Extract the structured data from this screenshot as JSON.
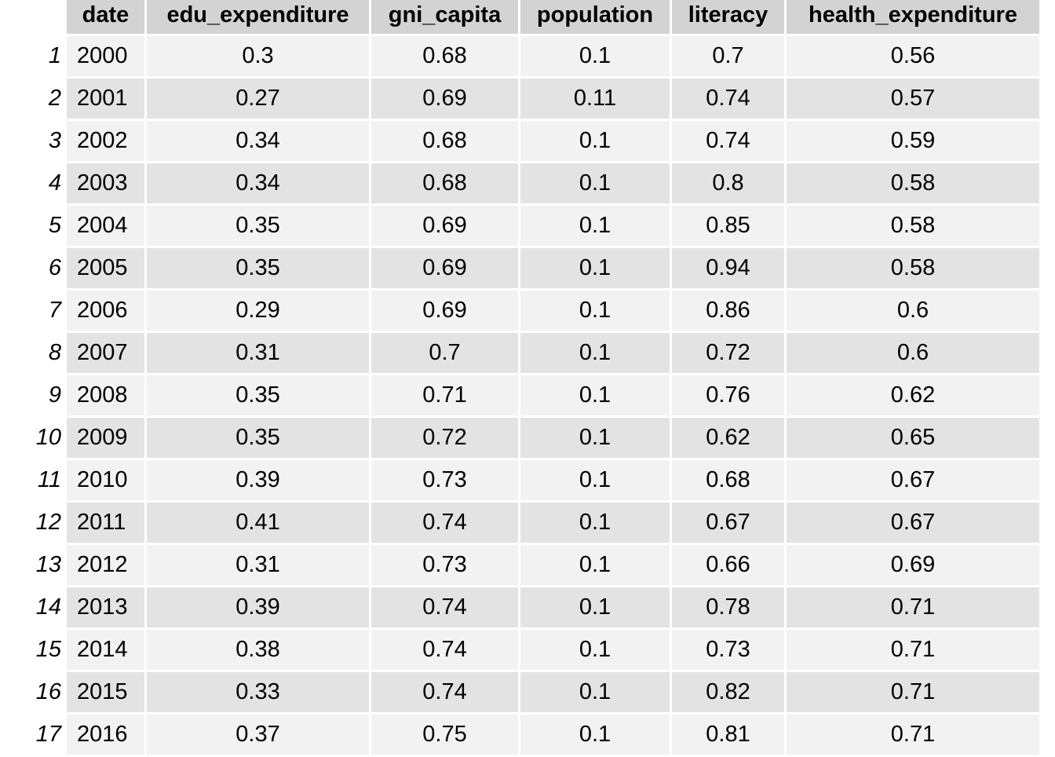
{
  "chart_data": {
    "type": "table",
    "columns": [
      "date",
      "edu_expenditure",
      "gni_capita",
      "population",
      "literacy",
      "health_expenditure"
    ],
    "row_names": [
      "1",
      "2",
      "3",
      "4",
      "5",
      "6",
      "7",
      "8",
      "9",
      "10",
      "11",
      "12",
      "13",
      "14",
      "15",
      "16",
      "17"
    ],
    "rows": [
      [
        "2000",
        "0.3",
        "0.68",
        "0.1",
        "0.7",
        "0.56"
      ],
      [
        "2001",
        "0.27",
        "0.69",
        "0.11",
        "0.74",
        "0.57"
      ],
      [
        "2002",
        "0.34",
        "0.68",
        "0.1",
        "0.74",
        "0.59"
      ],
      [
        "2003",
        "0.34",
        "0.68",
        "0.1",
        "0.8",
        "0.58"
      ],
      [
        "2004",
        "0.35",
        "0.69",
        "0.1",
        "0.85",
        "0.58"
      ],
      [
        "2005",
        "0.35",
        "0.69",
        "0.1",
        "0.94",
        "0.58"
      ],
      [
        "2006",
        "0.29",
        "0.69",
        "0.1",
        "0.86",
        "0.6"
      ],
      [
        "2007",
        "0.31",
        "0.7",
        "0.1",
        "0.72",
        "0.6"
      ],
      [
        "2008",
        "0.35",
        "0.71",
        "0.1",
        "0.76",
        "0.62"
      ],
      [
        "2009",
        "0.35",
        "0.72",
        "0.1",
        "0.62",
        "0.65"
      ],
      [
        "2010",
        "0.39",
        "0.73",
        "0.1",
        "0.68",
        "0.67"
      ],
      [
        "2011",
        "0.41",
        "0.74",
        "0.1",
        "0.67",
        "0.67"
      ],
      [
        "2012",
        "0.31",
        "0.73",
        "0.1",
        "0.66",
        "0.69"
      ],
      [
        "2013",
        "0.39",
        "0.74",
        "0.1",
        "0.78",
        "0.71"
      ],
      [
        "2014",
        "0.38",
        "0.74",
        "0.1",
        "0.73",
        "0.71"
      ],
      [
        "2015",
        "0.33",
        "0.74",
        "0.1",
        "0.82",
        "0.71"
      ],
      [
        "2016",
        "0.37",
        "0.75",
        "0.1",
        "0.81",
        "0.71"
      ]
    ],
    "colors": {
      "header_bg": "#d3d3d3",
      "row_odd_bg": "#f2f2f2",
      "row_even_bg": "#e3e3e3",
      "separator": "#ffffff"
    }
  }
}
